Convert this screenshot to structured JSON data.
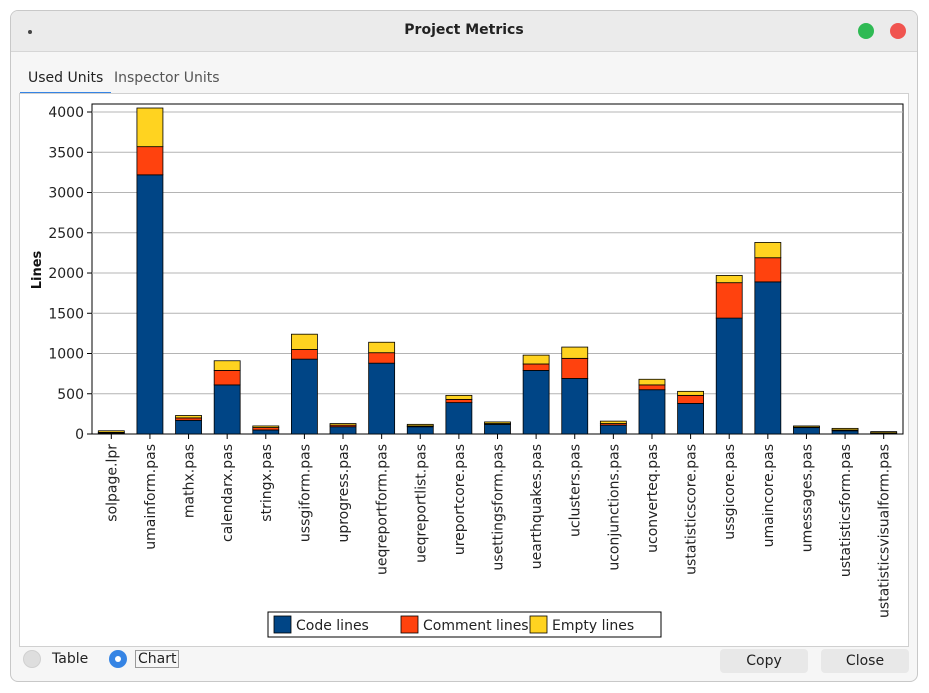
{
  "window": {
    "title": "Project Metrics"
  },
  "tabs": [
    {
      "label": "Used Units",
      "active": true
    },
    {
      "label": "Inspector Units",
      "active": false
    }
  ],
  "view_options": [
    {
      "label": "Table",
      "selected": false
    },
    {
      "label": "Chart",
      "selected": true
    }
  ],
  "buttons": {
    "copy": "Copy",
    "close": "Close"
  },
  "colors": {
    "code": "#004586",
    "comment": "#ff420e",
    "empty": "#ffd320",
    "accent": "#3584e4"
  },
  "chart_data": {
    "type": "bar",
    "stacked": true,
    "ylabel": "Lines",
    "xlabel": "",
    "ylim": [
      0,
      4100
    ],
    "yticks": [
      0,
      500,
      1000,
      1500,
      2000,
      2500,
      3000,
      3500,
      4000
    ],
    "grid": true,
    "legend": "bottom-center",
    "categories": [
      "solpage.lpr",
      "umainform.pas",
      "mathx.pas",
      "calendarx.pas",
      "stringx.pas",
      "ussgiform.pas",
      "uprogress.pas",
      "ueqreportform.pas",
      "ueqreportlist.pas",
      "ureportcore.pas",
      "usettingsform.pas",
      "uearthquakes.pas",
      "uclusters.pas",
      "uconjunctions.pas",
      "uconverteq.pas",
      "ustatisticscore.pas",
      "ussgicore.pas",
      "umaincore.pas",
      "umessages.pas",
      "ustatisticsform.pas",
      "ustatisticsvisualform.pas"
    ],
    "series": [
      {
        "name": "Code lines",
        "values": [
          10,
          3220,
          170,
          610,
          50,
          930,
          90,
          880,
          90,
          390,
          120,
          790,
          690,
          110,
          550,
          380,
          1440,
          1890,
          80,
          40,
          10
        ]
      },
      {
        "name": "Comment lines",
        "values": [
          10,
          350,
          30,
          180,
          30,
          120,
          20,
          130,
          10,
          40,
          10,
          80,
          250,
          20,
          60,
          100,
          440,
          300,
          5,
          10,
          5
        ]
      },
      {
        "name": "Empty lines",
        "values": [
          20,
          480,
          30,
          120,
          20,
          190,
          20,
          130,
          20,
          50,
          20,
          110,
          140,
          30,
          70,
          50,
          90,
          190,
          15,
          20,
          15
        ]
      }
    ]
  }
}
